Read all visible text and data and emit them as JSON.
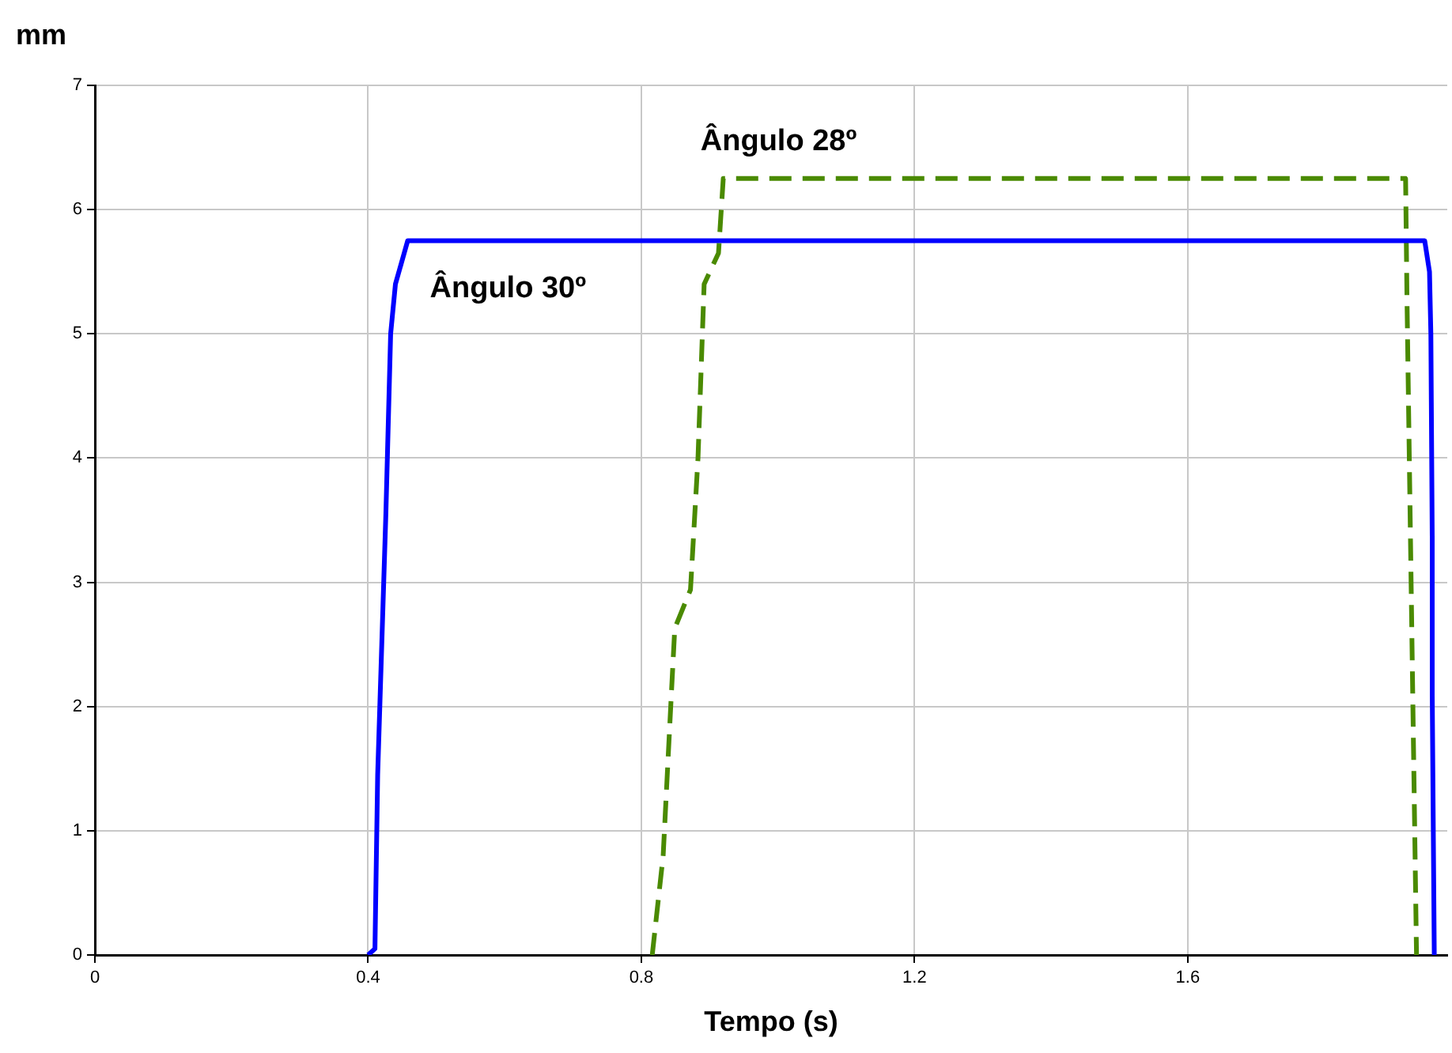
{
  "chart_data": {
    "type": "line",
    "xlabel": "Tempo (s)",
    "ylabel": "mm",
    "xlim": [
      0,
      1.98
    ],
    "xticks": [
      0,
      0.4,
      0.8,
      1.2,
      1.6
    ],
    "ylim": [
      0,
      7
    ],
    "yticks": [
      0,
      1,
      2,
      3,
      4,
      5,
      6,
      7
    ],
    "grid": true,
    "legend": false,
    "marker": "none",
    "series": [
      {
        "name": "Ângulo 30º",
        "color": "#0000ff",
        "line_style": "solid",
        "x": [
          0.4,
          0.41,
          0.414,
          0.426,
          0.433,
          0.44,
          0.458,
          1.947,
          1.954,
          1.956,
          1.958,
          1.958,
          1.961
        ],
        "values": [
          0,
          0.05,
          1.45,
          3.55,
          5.0,
          5.4,
          5.75,
          5.75,
          5.5,
          5.0,
          3.35,
          2.1,
          0
        ]
      },
      {
        "name": "Ângulo 28º",
        "color": "#4a8a00",
        "line_style": "dashed",
        "x": [
          0.816,
          0.832,
          0.844,
          0.849,
          0.872,
          0.883,
          0.892,
          0.913,
          0.92,
          1.919,
          1.921,
          1.935
        ],
        "values": [
          0,
          0.8,
          2.1,
          2.63,
          2.94,
          4.0,
          5.4,
          5.65,
          6.25,
          6.25,
          5.3,
          0
        ]
      }
    ]
  }
}
